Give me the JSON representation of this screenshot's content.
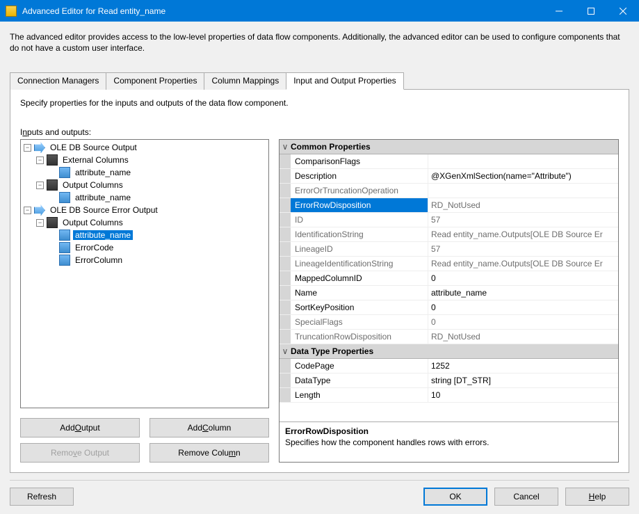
{
  "window": {
    "title": "Advanced Editor for Read entity_name",
    "description": "The advanced editor provides access to the low-level properties of data flow components. Additionally, the advanced editor can be used to configure components that do not have a custom user interface."
  },
  "tabs": [
    {
      "label": "Connection Managers",
      "active": false
    },
    {
      "label": "Component Properties",
      "active": false
    },
    {
      "label": "Column Mappings",
      "active": false
    },
    {
      "label": "Input and Output Properties",
      "active": true
    }
  ],
  "panel": {
    "description": "Specify properties for the inputs and outputs of the data flow component.",
    "tree_label_pre": "I",
    "tree_label_u": "n",
    "tree_label_post": "puts and outputs:"
  },
  "tree": {
    "root1": {
      "label": "OLE DB Source Output"
    },
    "r1c1": {
      "label": "External Columns"
    },
    "r1c1n1": {
      "label": "attribute_name"
    },
    "r1c2": {
      "label": "Output Columns"
    },
    "r1c2n1": {
      "label": "attribute_name"
    },
    "root2": {
      "label": "OLE DB Source Error Output"
    },
    "r2c1": {
      "label": "Output Columns"
    },
    "r2c1n1": {
      "label": "attribute_name",
      "selected": true
    },
    "r2c1n2": {
      "label": "ErrorCode"
    },
    "r2c1n3": {
      "label": "ErrorColumn"
    }
  },
  "buttons": {
    "add_output": {
      "pre": "Add ",
      "u": "O",
      "post": "utput"
    },
    "add_column": {
      "pre": "Add ",
      "u": "C",
      "post": "olumn"
    },
    "remove_output": {
      "pre": "Remo",
      "u": "v",
      "post": "e Output",
      "disabled": true
    },
    "remove_column": {
      "pre": "Remove Colu",
      "u": "m",
      "post": "n"
    }
  },
  "properties": {
    "cat1": "Common Properties",
    "cat2": "Data Type Properties",
    "rows": [
      {
        "cat": 1,
        "name": "ComparisonFlags",
        "value": "",
        "ro": false
      },
      {
        "cat": 1,
        "name": "Description",
        "value": "@XGenXmlSection(name=\"Attribute\")",
        "ro": false
      },
      {
        "cat": 1,
        "name": "ErrorOrTruncationOperation",
        "value": "",
        "ro": true
      },
      {
        "cat": 1,
        "name": "ErrorRowDisposition",
        "value": "RD_NotUsed",
        "ro": true,
        "selected": true
      },
      {
        "cat": 1,
        "name": "ID",
        "value": "57",
        "ro": true
      },
      {
        "cat": 1,
        "name": "IdentificationString",
        "value": "Read entity_name.Outputs[OLE DB Source Er",
        "ro": true
      },
      {
        "cat": 1,
        "name": "LineageID",
        "value": "57",
        "ro": true
      },
      {
        "cat": 1,
        "name": "LineageIdentificationString",
        "value": "Read entity_name.Outputs[OLE DB Source Er",
        "ro": true
      },
      {
        "cat": 1,
        "name": "MappedColumnID",
        "value": "0",
        "ro": false
      },
      {
        "cat": 1,
        "name": "Name",
        "value": "attribute_name",
        "ro": false
      },
      {
        "cat": 1,
        "name": "SortKeyPosition",
        "value": "0",
        "ro": false
      },
      {
        "cat": 1,
        "name": "SpecialFlags",
        "value": "0",
        "ro": true
      },
      {
        "cat": 1,
        "name": "TruncationRowDisposition",
        "value": "RD_NotUsed",
        "ro": true
      },
      {
        "cat": 2,
        "name": "CodePage",
        "value": "1252",
        "ro": false
      },
      {
        "cat": 2,
        "name": "DataType",
        "value": "string [DT_STR]",
        "ro": false
      },
      {
        "cat": 2,
        "name": "Length",
        "value": "10",
        "ro": false
      }
    ]
  },
  "help_pane": {
    "title": "ErrorRowDisposition",
    "desc": "Specifies how the component handles rows with errors."
  },
  "footer": {
    "refresh": "Refresh",
    "ok": "OK",
    "cancel": "Cancel",
    "help_u": "H",
    "help_post": "elp"
  }
}
